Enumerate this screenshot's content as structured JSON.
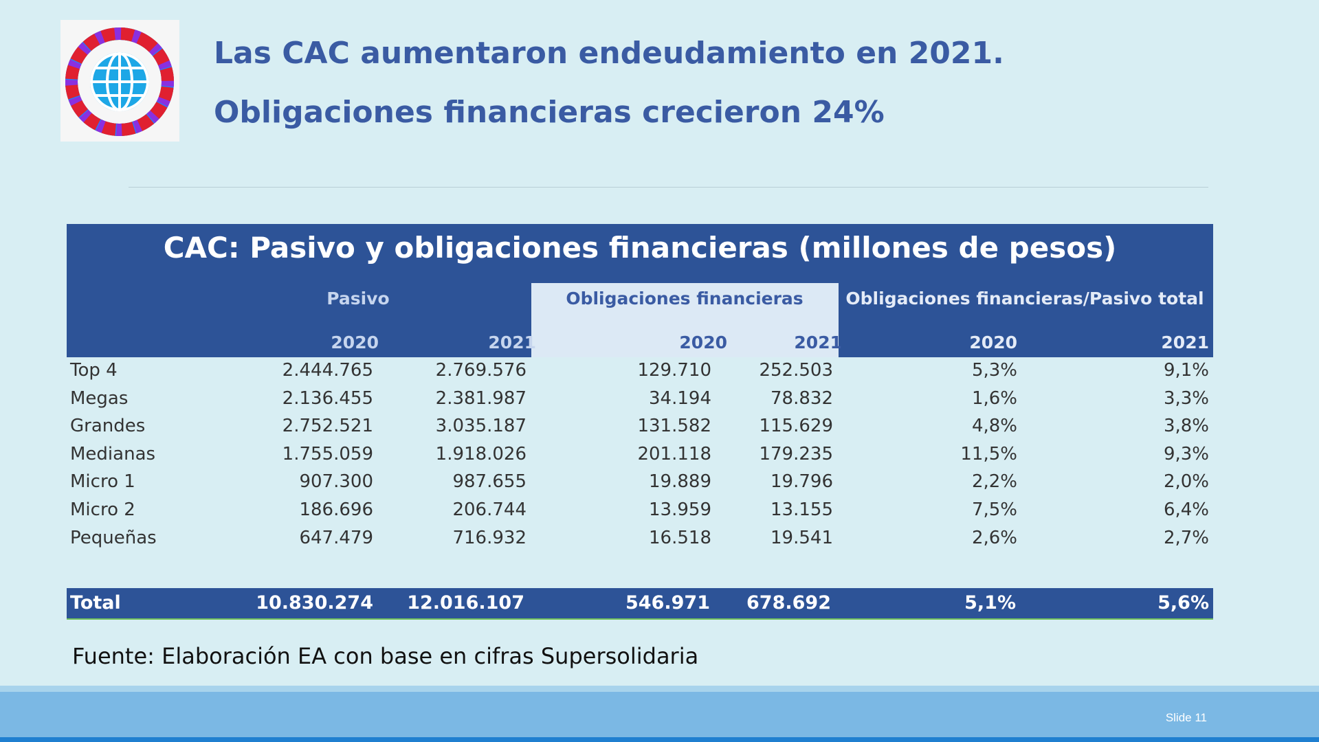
{
  "title_line1": "Las CAC aumentaron endeudamiento en 2021.",
  "title_line2": "Obligaciones financieras crecieron 24%",
  "table": {
    "title": "CAC: Pasivo y obligaciones financieras (millones de pesos)",
    "groups": [
      "Pasivo",
      "Obligaciones financieras",
      "Obligaciones financieras/Pasivo total"
    ],
    "years": [
      "2020",
      "2021",
      "2020",
      "2021",
      "2020",
      "2021"
    ],
    "rows": [
      {
        "label": "Top 4",
        "values": [
          "2.444.765",
          "2.769.576",
          "129.710",
          "252.503",
          "5,3%",
          "9,1%"
        ]
      },
      {
        "label": "Megas",
        "values": [
          "2.136.455",
          "2.381.987",
          "34.194",
          "78.832",
          "1,6%",
          "3,3%"
        ]
      },
      {
        "label": "Grandes",
        "values": [
          "2.752.521",
          "3.035.187",
          "131.582",
          "115.629",
          "4,8%",
          "3,8%"
        ]
      },
      {
        "label": "Medianas",
        "values": [
          "1.755.059",
          "1.918.026",
          "201.118",
          "179.235",
          "11,5%",
          "9,3%"
        ]
      },
      {
        "label": "Micro 1",
        "values": [
          "907.300",
          "987.655",
          "19.889",
          "19.796",
          "2,2%",
          "2,0%"
        ]
      },
      {
        "label": "Micro 2",
        "values": [
          "186.696",
          "206.744",
          "13.959",
          "13.155",
          "7,5%",
          "6,4%"
        ]
      },
      {
        "label": "Pequeñas",
        "values": [
          "647.479",
          "716.932",
          "16.518",
          "19.541",
          "2,6%",
          "2,7%"
        ]
      }
    ],
    "total": {
      "label": "Total",
      "values": [
        "10.830.274",
        "12.016.107",
        "546.971",
        "678.692",
        "5,1%",
        "5,6%"
      ]
    }
  },
  "source": "Fuente: Elaboración EA con base en cifras Supersolidaria",
  "slide_number": "Slide 11",
  "colors": {
    "title": "#3a5ba3",
    "header": "#2d5397",
    "background": "#d8eef3",
    "footer": "#7bb8e4"
  }
}
